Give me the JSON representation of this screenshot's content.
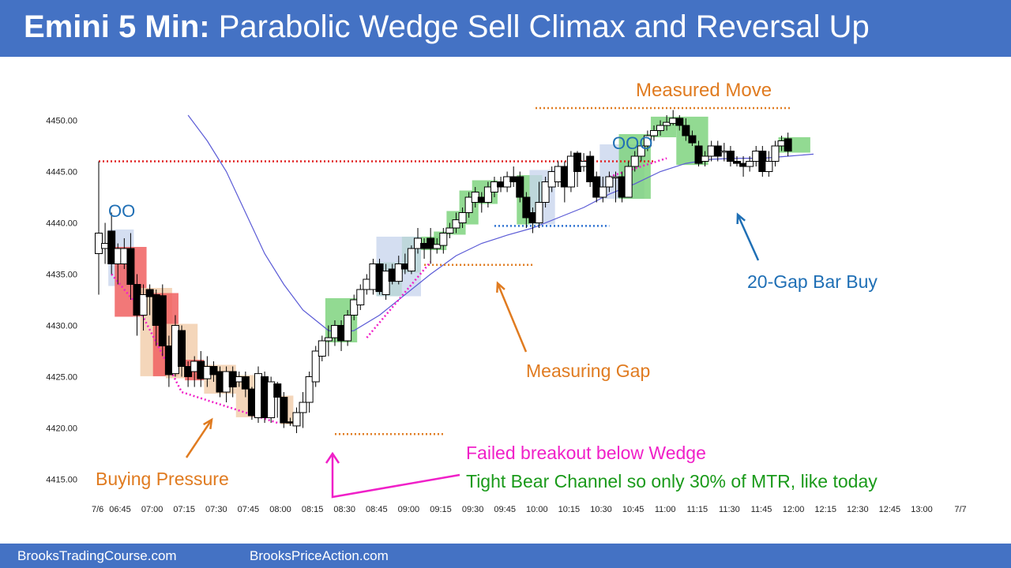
{
  "header": {
    "title_bold": "Emini 5 Min:",
    "title_rest": " Parabolic Wedge Sell Climax and Reversal Up"
  },
  "footer": {
    "left": "BrooksTradingCourse.com",
    "right": "BrooksPriceAction.com"
  },
  "colors": {
    "header_bg": "#4472c4",
    "ema": "#5b5bd6",
    "bull_highlight": "#7fd37f",
    "bear_highlight": "#f06060",
    "tan_highlight": "#f2cfae",
    "blue_highlight": "#c9d6ee",
    "orange": "#e07b20",
    "magenta": "#f020c8",
    "green_text": "#1a9a1a",
    "blue_text": "#1f6fb5",
    "red_line": "#e02020"
  },
  "chart_data": {
    "type": "candlestick",
    "ylim": [
      4415,
      4451
    ],
    "yticks": [
      "4450.00",
      "4445.00",
      "4440.00",
      "4435.00",
      "4430.00",
      "4425.00",
      "4420.00",
      "4415.00"
    ],
    "x_start_label": "7/6",
    "x_end_label": "7/7",
    "xticks": [
      "06:45",
      "07:00",
      "07:15",
      "07:30",
      "07:45",
      "08:00",
      "08:15",
      "08:30",
      "08:45",
      "09:00",
      "09:15",
      "09:30",
      "09:45",
      "10:00",
      "10:15",
      "10:30",
      "10:45",
      "11:00",
      "11:15",
      "11:30",
      "11:45",
      "12:00",
      "12:15",
      "12:30",
      "12:45",
      "13:00"
    ],
    "candles": [
      [
        4437,
        4439,
        4446,
        4433
      ],
      [
        4437.5,
        4438,
        4440,
        4436
      ],
      [
        4439.2,
        4436.0,
        4441.0,
        4435.0
      ],
      [
        4436.0,
        4437.5,
        4438.0,
        4434.0
      ],
      [
        4436,
        4437.5,
        4438.5,
        4435.5
      ],
      [
        4437.5,
        4434.0,
        4439.0,
        4432.5
      ],
      [
        4434.0,
        4431.0,
        4435.0,
        4429.0
      ],
      [
        4431.0,
        4433.0,
        4434.0,
        4429.5
      ],
      [
        4433.5,
        4432.8,
        4434.0,
        4431.0
      ],
      [
        4433.0,
        4430.0,
        4433.5,
        4428.0
      ],
      [
        4432.9,
        4428.0,
        4434.0,
        4427.0
      ],
      [
        4428.0,
        4425.2,
        4429.0,
        4424.0
      ],
      [
        4425.3,
        4430.0,
        4431.0,
        4425.0
      ],
      [
        4429.5,
        4426.0,
        4430.0,
        4425.0
      ],
      [
        4426.0,
        4425.0,
        4426.5,
        4424.0
      ],
      [
        4425.5,
        4426.5,
        4427.0,
        4424.0
      ],
      [
        4426.5,
        4424.8,
        4427.5,
        4424.0
      ],
      [
        4424.8,
        4426.0,
        4427.0,
        4424.0
      ],
      [
        4426.0,
        4425.2,
        4426.5,
        4424.5
      ],
      [
        4425.5,
        4423.5,
        4426.0,
        4423.0
      ],
      [
        4423.5,
        4425.5,
        4426.0,
        4422.5
      ],
      [
        4425.5,
        4424.0,
        4426.0,
        4423.0
      ],
      [
        4424.5,
        4425.0,
        4425.5,
        4424.0
      ],
      [
        4425.0,
        4423.8,
        4425.5,
        4423.0
      ],
      [
        4423.8,
        4421.2,
        4424.0,
        4420.8
      ],
      [
        4421.0,
        4425.3,
        4426.0,
        4420.5
      ],
      [
        4425.0,
        4421.0,
        4425.5,
        4420.5
      ],
      [
        4421.0,
        4424.5,
        4425.0,
        4420.5
      ],
      [
        4424.3,
        4423.0,
        4424.5,
        4421.0
      ],
      [
        4423.0,
        4420.5,
        4423.5,
        4420.0
      ],
      [
        4420.6,
        4420.5,
        4421.0,
        4420.2
      ],
      [
        4420.2,
        4421.5,
        4422.0,
        4419.5
      ],
      [
        4421.5,
        4422.5,
        4423.5,
        4420.0
      ],
      [
        4422.5,
        4425.0,
        4425.5,
        4421.5
      ],
      [
        4424.5,
        4427.5,
        4428.0,
        4424.0
      ],
      [
        4427.0,
        4428.5,
        4429.0,
        4426.5
      ],
      [
        4428.5,
        4428.8,
        4430.0,
        4427.0
      ],
      [
        4428.8,
        4430.0,
        4430.5,
        4428.0
      ],
      [
        4430.0,
        4428.5,
        4430.5,
        4427.5
      ],
      [
        4428.5,
        4431.0,
        4431.5,
        4428.0
      ],
      [
        4431.0,
        4432.5,
        4433.0,
        4430.5
      ],
      [
        4432.0,
        4433.5,
        4434.0,
        4431.5
      ],
      [
        4433.5,
        4434.5,
        4435.0,
        4433.0
      ],
      [
        4433.5,
        4436.0,
        4436.5,
        4433.0
      ],
      [
        4436.0,
        4433.3,
        4436.5,
        4433.0
      ],
      [
        4433.0,
        4435.3,
        4436.0,
        4432.5
      ],
      [
        4435.5,
        4434.3,
        4436.0,
        4434.0
      ],
      [
        4434.3,
        4436.0,
        4436.8,
        4434.0
      ],
      [
        4436.0,
        4435.5,
        4437.0,
        4435.0
      ],
      [
        4435.3,
        4437.5,
        4437.8,
        4435.0
      ],
      [
        4437.5,
        4438.5,
        4439.5,
        4437.0
      ],
      [
        4438.0,
        4437.5,
        4438.5,
        4436.5
      ],
      [
        4438.5,
        4437.5,
        4439.5,
        4436.0
      ],
      [
        4437.5,
        4437.9,
        4438.5,
        4437.0
      ],
      [
        4437.8,
        4439.0,
        4439.5,
        4437.0
      ],
      [
        4439.0,
        4439.5,
        4440.0,
        4438.5
      ],
      [
        4439.5,
        4440.3,
        4441.0,
        4439.0
      ],
      [
        4440.0,
        4441.0,
        4441.5,
        4439.5
      ],
      [
        4441.0,
        4442.5,
        4443.0,
        4440.5
      ],
      [
        4442.0,
        4443.0,
        4443.5,
        4441.5
      ],
      [
        4442.5,
        4442.0,
        4443.0,
        4441.0
      ],
      [
        4442.0,
        4443.5,
        4444.0,
        4441.5
      ],
      [
        4443.0,
        4444.0,
        4444.5,
        4442.5
      ],
      [
        4444.0,
        4443.5,
        4444.5,
        4443.0
      ],
      [
        4443.5,
        4444.5,
        4445.0,
        4443.0
      ],
      [
        4444.5,
        4444.0,
        4445.5,
        4443.5
      ],
      [
        4444.5,
        4442.5,
        4445.0,
        4442.0
      ],
      [
        4442.5,
        4440.5,
        4443.0,
        4439.5
      ],
      [
        4441.0,
        4440.0,
        4441.5,
        4439.0
      ],
      [
        4440.0,
        4442.0,
        4444.0,
        4439.5
      ],
      [
        4442.0,
        4444.0,
        4444.5,
        4441.5
      ],
      [
        4443.5,
        4445.0,
        4445.5,
        4443.0
      ],
      [
        4444.0,
        4445.5,
        4446.0,
        4443.5
      ],
      [
        4445.5,
        4443.5,
        4446.0,
        4442.0
      ],
      [
        4443.5,
        4446.5,
        4447.0,
        4443.0
      ],
      [
        4446.8,
        4445.0,
        4447.0,
        4443.5
      ],
      [
        4445.5,
        4446.0,
        4446.8,
        4445.0
      ],
      [
        4446.5,
        4444.0,
        4447.0,
        4443.5
      ],
      [
        4444.5,
        4442.5,
        4445.0,
        4442.0
      ],
      [
        4442.5,
        4443.5,
        4444.5,
        4442.0
      ],
      [
        4443.5,
        4444.5,
        4445.0,
        4443.0
      ],
      [
        4444.5,
        4444.5,
        4445.0,
        4442.0
      ],
      [
        4444.5,
        4442.5,
        4445.0,
        4442.0
      ],
      [
        4442.5,
        4445.5,
        4446.0,
        4442.5
      ],
      [
        4445.5,
        4446.5,
        4447.0,
        4445.0
      ],
      [
        4446.5,
        4447.5,
        4448.0,
        4446.0
      ],
      [
        4447.5,
        4448.5,
        4449.0,
        4447.0
      ],
      [
        4448.5,
        4449.0,
        4449.5,
        4448.0
      ],
      [
        4449.0,
        4449.5,
        4450.0,
        4448.5
      ],
      [
        4449.5,
        4449.8,
        4450.5,
        4449.0
      ],
      [
        4449.7,
        4450.2,
        4451.0,
        4449.5
      ],
      [
        4450.2,
        4449.5,
        4450.5,
        4449.0
      ],
      [
        4449.5,
        4448.5,
        4450.2,
        4448.0
      ],
      [
        4448.5,
        4447.8,
        4449.0,
        4447.5
      ],
      [
        4447.5,
        4445.8,
        4448.0,
        4445.5
      ],
      [
        4446.0,
        4446.5,
        4447.0,
        4445.5
      ],
      [
        4446.5,
        4447.5,
        4448.0,
        4446.0
      ],
      [
        4447.5,
        4446.5,
        4448.0,
        4446.0
      ],
      [
        4447.0,
        4447.0,
        4447.8,
        4446.0
      ],
      [
        4447.0,
        4446.0,
        4447.5,
        4445.5
      ],
      [
        4446.0,
        4445.8,
        4446.5,
        4445.5
      ],
      [
        4445.8,
        4445.5,
        4446.5,
        4444.5
      ],
      [
        4445.5,
        4446.0,
        4446.5,
        4445.0
      ],
      [
        4446.0,
        4447.0,
        4447.5,
        4445.5
      ],
      [
        4447.0,
        4445.0,
        4447.5,
        4444.5
      ],
      [
        4445.0,
        4446.0,
        4447.0,
        4444.5
      ],
      [
        4446.0,
        4447.5,
        4448.0,
        4445.5
      ],
      [
        4447.5,
        4448.0,
        4448.5,
        4447.0
      ],
      [
        4448.2,
        4447.0,
        4448.8,
        4446.5
      ]
    ],
    "ema_line": {
      "comment_free": true,
      "points": [
        [
          14,
          4450.5
        ],
        [
          17,
          4448.0
        ],
        [
          20,
          4445.0
        ],
        [
          23,
          4441.0
        ],
        [
          26,
          4437.0
        ],
        [
          29,
          4434.0
        ],
        [
          32,
          4431.5
        ],
        [
          34,
          4430.5
        ],
        [
          36,
          4429.5
        ],
        [
          38,
          4429.3
        ],
        [
          40,
          4429.5
        ],
        [
          44,
          4431.0
        ],
        [
          48,
          4433.0
        ],
        [
          52,
          4435.0
        ],
        [
          56,
          4436.8
        ],
        [
          60,
          4438.0
        ],
        [
          64,
          4438.8
        ],
        [
          68,
          4439.5
        ],
        [
          72,
          4440.5
        ],
        [
          76,
          4441.5
        ],
        [
          80,
          4442.8
        ],
        [
          84,
          4443.8
        ],
        [
          88,
          4445.0
        ],
        [
          92,
          4445.8
        ],
        [
          96,
          4446.2
        ],
        [
          100,
          4446.3
        ],
        [
          104,
          4446.3
        ],
        [
          108,
          4446.5
        ],
        [
          112,
          4446.7
        ]
      ]
    },
    "annotations": {
      "oo": "OO",
      "ooo": "OOO",
      "buying_pressure": "Buying Pressure",
      "failed_breakout": "Failed breakout below Wedge",
      "tight_bear": "Tight Bear Channel so only 30% of MTR, like today",
      "measuring_gap": "Measuring Gap",
      "measured_move": "Measured Move",
      "gap_bar_buy": "20-Gap Bar Buy"
    }
  }
}
